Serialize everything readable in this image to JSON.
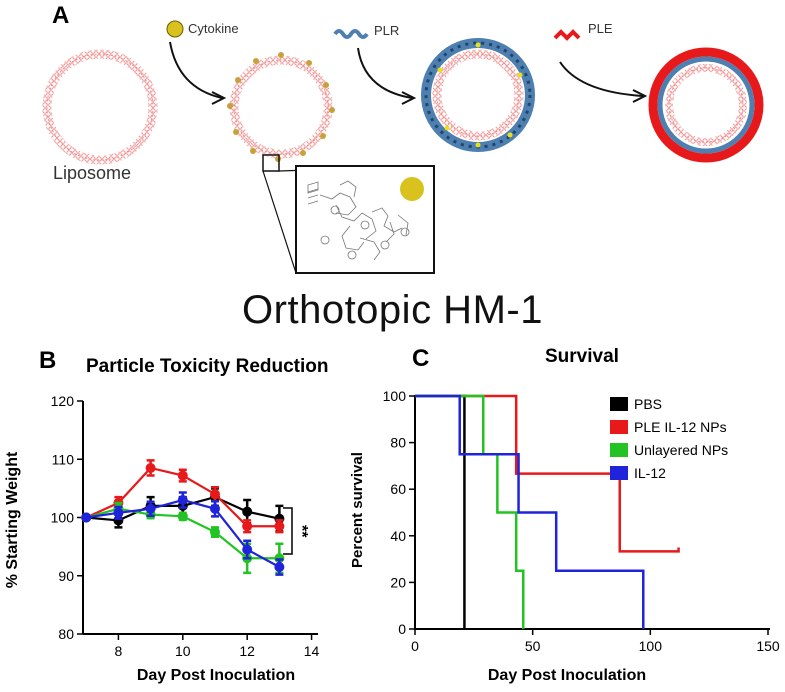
{
  "panel_a": {
    "letter": "A",
    "labels": {
      "cytokine": "Cytokine",
      "plr": "PLR",
      "ple": "PLE",
      "liposome": "Liposome"
    },
    "colors": {
      "lipid": "#ef8c8c",
      "cytokine": "#d9c21e",
      "plr": "#4d7fb0",
      "ple": "#e8191a"
    }
  },
  "main_title": "Orthotopic HM-1",
  "panel_b_letter": "B",
  "panel_c_letter": "C",
  "chart_data": [
    {
      "type": "line",
      "title": "Particle Toxicity Reduction",
      "xlabel": "Day Post Inoculation",
      "ylabel": "% Starting Weight",
      "xlim": [
        6.9,
        14.2
      ],
      "ylim": [
        80,
        120
      ],
      "xticks": [
        8,
        10,
        12,
        14
      ],
      "yticks": [
        80,
        90,
        100,
        110,
        120
      ],
      "annotation": "**",
      "series": [
        {
          "name": "PBS",
          "color": "#000000",
          "x": [
            7,
            8,
            9,
            10,
            11,
            12,
            13
          ],
          "y": [
            100,
            99.5,
            102,
            102,
            103.5,
            101,
            99.8
          ],
          "err": [
            0,
            1.2,
            1.5,
            1.5,
            1.5,
            2.0,
            2.2
          ]
        },
        {
          "name": "PLE IL-12 NPs",
          "color": "#e8191a",
          "x": [
            7,
            8,
            9,
            10,
            11,
            12,
            13
          ],
          "y": [
            100,
            102.5,
            108.5,
            107.2,
            104,
            98.5,
            98.5
          ],
          "err": [
            0,
            1.0,
            1.3,
            1.0,
            1.2,
            1.0,
            1.0
          ]
        },
        {
          "name": "Unlayered NPs",
          "color": "#22c322",
          "x": [
            7,
            8,
            9,
            10,
            11,
            12,
            13
          ],
          "y": [
            100,
            101.5,
            100.5,
            100.2,
            97.5,
            93,
            93
          ],
          "err": [
            0,
            1.0,
            0.6,
            0.6,
            0.8,
            2.5,
            2.5
          ]
        },
        {
          "name": "IL-12",
          "color": "#1f23d9",
          "x": [
            7,
            8,
            9,
            10,
            11,
            12,
            13
          ],
          "y": [
            100,
            100.8,
            101.5,
            103,
            101.5,
            94.5,
            91.5
          ],
          "err": [
            0,
            1.0,
            1.2,
            1.3,
            1.3,
            1.5,
            1.3
          ]
        }
      ]
    },
    {
      "type": "line",
      "title": "Survival",
      "xlabel": "Day Post Inoculation",
      "ylabel": "Percent survival",
      "xlim": [
        0,
        150
      ],
      "ylim": [
        0,
        100
      ],
      "xticks": [
        0,
        50,
        100,
        150
      ],
      "yticks": [
        0,
        20,
        40,
        60,
        80,
        100
      ],
      "legend_position": "top-right",
      "series": [
        {
          "name": "PBS",
          "color": "#000000",
          "steps": [
            [
              0,
              100
            ],
            [
              21,
              100
            ],
            [
              21,
              0
            ]
          ]
        },
        {
          "name": "PLE IL-12 NPs",
          "color": "#e8191a",
          "steps": [
            [
              0,
              100
            ],
            [
              43,
              100
            ],
            [
              43,
              66.7
            ],
            [
              87,
              66.7
            ],
            [
              87,
              33.3
            ],
            [
              112,
              33.3
            ],
            [
              112,
              35
            ]
          ]
        },
        {
          "name": "Unlayered NPs",
          "color": "#22c322",
          "steps": [
            [
              0,
              100
            ],
            [
              29,
              100
            ],
            [
              29,
              75
            ],
            [
              35,
              75
            ],
            [
              35,
              50
            ],
            [
              43,
              50
            ],
            [
              43,
              25
            ],
            [
              46,
              25
            ],
            [
              46,
              0
            ]
          ]
        },
        {
          "name": "IL-12",
          "color": "#1f23d9",
          "steps": [
            [
              0,
              100
            ],
            [
              19,
              100
            ],
            [
              19,
              75
            ],
            [
              44,
              75
            ],
            [
              44,
              50
            ],
            [
              60,
              50
            ],
            [
              60,
              25
            ],
            [
              97,
              25
            ],
            [
              97,
              0
            ]
          ]
        }
      ]
    }
  ]
}
